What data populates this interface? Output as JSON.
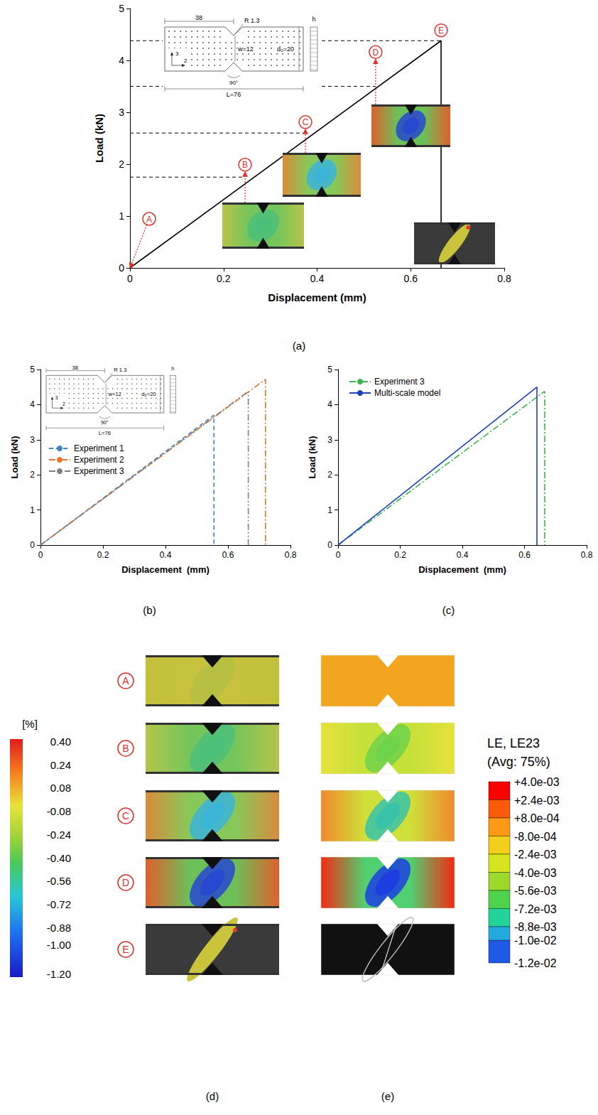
{
  "chart_data": [
    {
      "type": "line",
      "title": "(a)",
      "xlabel": "Displacement (mm)",
      "ylabel": "Load (kN)",
      "xlim": [
        0,
        0.8
      ],
      "xticks": [
        0,
        0.2,
        0.4,
        0.6,
        0.8
      ],
      "ylim": [
        0,
        5
      ],
      "yticks": [
        0,
        1,
        2,
        3,
        4,
        5
      ],
      "grid": false,
      "series": [
        {
          "color": "#000000",
          "line_style": "solid",
          "x": [
            0,
            0.665,
            0.665
          ],
          "values": [
            0,
            4.38,
            0
          ]
        }
      ],
      "annotations": [
        {
          "text": "A",
          "x": 0.041,
          "y": 0.945,
          "target_x": 0,
          "target_y": 0
        },
        {
          "text": "B",
          "x": 0.246,
          "y": 1.99,
          "level": 1.75
        },
        {
          "text": "C",
          "x": 0.375,
          "y": 2.81,
          "level": 2.6
        },
        {
          "text": "D",
          "x": 0.525,
          "y": 4.16,
          "level": 3.5
        },
        {
          "text": "E",
          "x": 0.665,
          "y": 4.58,
          "level": 4.38
        }
      ]
    },
    {
      "type": "line",
      "title": "(b)",
      "xlabel": "Displacement  (mm)",
      "ylabel": "Load (kN)",
      "xlim": [
        0,
        0.8
      ],
      "xticks": [
        0,
        0.2,
        0.4,
        0.6,
        0.8
      ],
      "ylim": [
        0,
        5
      ],
      "yticks": [
        0,
        1,
        2,
        3,
        4,
        5
      ],
      "grid": false,
      "legend": "upper left",
      "series": [
        {
          "name": "Experiment 1",
          "color": "#3d85c6",
          "line_style": "dashed",
          "x": [
            0,
            0.555,
            0.555
          ],
          "values": [
            0,
            3.7,
            0
          ]
        },
        {
          "name": "Experiment 2",
          "color": "#e8752a",
          "line_style": "dash-dot",
          "x": [
            0,
            0.72,
            0.72
          ],
          "values": [
            0,
            4.72,
            0
          ]
        },
        {
          "name": "Experiment 3",
          "color": "#808080",
          "line_style": "dash-dot-dot",
          "x": [
            0,
            0.665,
            0.665
          ],
          "values": [
            0,
            4.38,
            0
          ]
        }
      ]
    },
    {
      "type": "line",
      "title": "(c)",
      "xlabel": "Displacement  (mm)",
      "ylabel": "Load (kN)",
      "xlim": [
        0,
        0.8
      ],
      "xticks": [
        0,
        0.2,
        0.4,
        0.6,
        0.8
      ],
      "ylim": [
        0,
        5
      ],
      "yticks": [
        0,
        1,
        2,
        3,
        4,
        5
      ],
      "grid": false,
      "legend": "upper left",
      "series": [
        {
          "name": "Experiment 3",
          "color": "#3cb44b",
          "line_style": "dash-dot",
          "x": [
            0,
            0.665,
            0.665
          ],
          "values": [
            0,
            4.38,
            0
          ]
        },
        {
          "name": "Multi-scale model",
          "color": "#1f3fbf",
          "line_style": "solid",
          "x": [
            0,
            0.64,
            0.64
          ],
          "values": [
            0,
            4.5,
            0
          ]
        }
      ]
    }
  ],
  "specimen_sketch": {
    "length": "38",
    "radius": "R 1.3",
    "width": "w=12",
    "depth": "d₀=20",
    "thickness": "h",
    "total_length": "L=76",
    "angle": "90°",
    "axes": [
      "3",
      "2"
    ]
  },
  "strain_maps": {
    "rows": [
      "A",
      "B",
      "C",
      "D",
      "E"
    ],
    "panels": [
      "(d)",
      "(e)"
    ],
    "dic_colorbar": {
      "title": "[%]",
      "ticks": [
        {
          "value": 0.4,
          "label": "0.40"
        },
        0.24,
        0.08,
        -0.08,
        -0.24,
        {
          "value": -0.4,
          "label": "-0.40"
        },
        -0.56,
        -0.72,
        -0.88,
        {
          "value": -1.0,
          "label": "-1.00"
        },
        {
          "value": -1.2,
          "label": "-1.20"
        }
      ]
    },
    "fe_colorbar": {
      "title": "LE, LE23",
      "subtitle": "(Avg: 75%)",
      "ticks": [
        {
          "value": 0.004,
          "label": "+4.0e-03"
        },
        {
          "value": 0.0024,
          "label": "+2.4e-03"
        },
        {
          "value": 0.0008,
          "label": "+8.0e-04"
        },
        {
          "value": -0.0008,
          "label": "-8.0e-04"
        },
        {
          "value": -0.0024,
          "label": "-2.4e-03"
        },
        {
          "value": -0.004,
          "label": "-4.0e-03"
        },
        {
          "value": -0.0056,
          "label": "-5.6e-03"
        },
        {
          "value": -0.0072,
          "label": "-7.2e-03"
        },
        {
          "value": -0.0088,
          "label": "-8.8e-03"
        },
        {
          "value": -0.01,
          "label": "-1.0e-02"
        },
        {
          "value": -0.012,
          "label": "-1.2e-02"
        }
      ]
    }
  }
}
